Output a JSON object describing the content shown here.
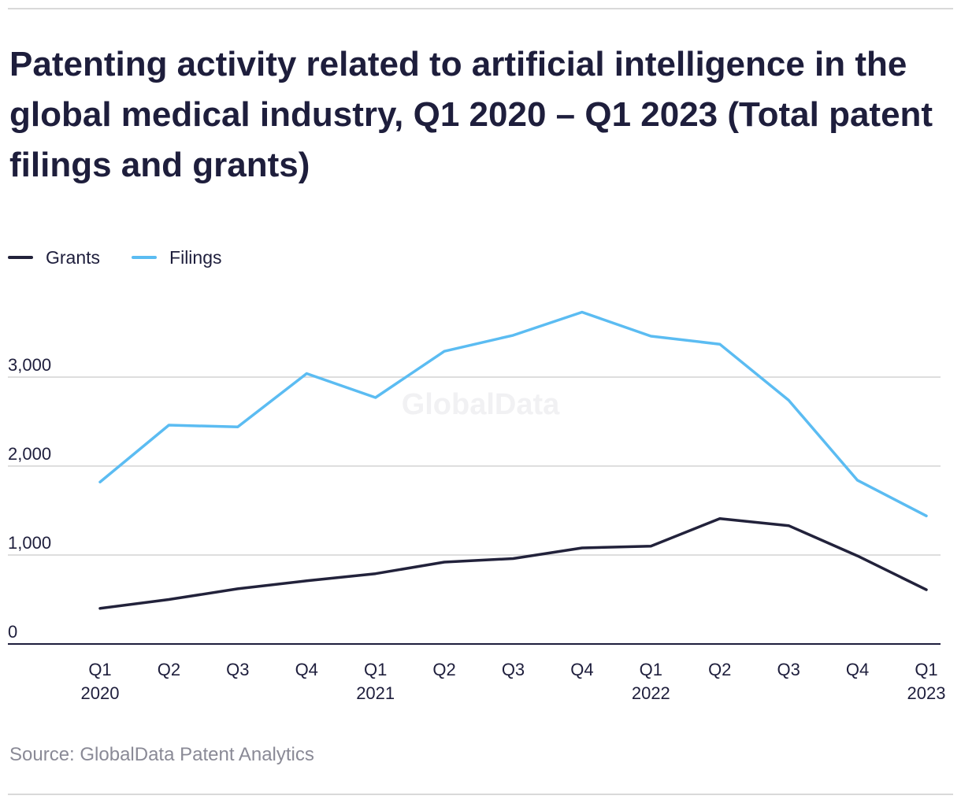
{
  "title": "Patenting activity related to artificial intelligence in the global medical industry, Q1 2020 – Q1 2023 (Total patent filings and grants)",
  "source": "Source: GlobalData Patent Analytics",
  "watermark": "GlobalData",
  "colors": {
    "grants": "#22223b",
    "filings": "#5bbcf2",
    "grid": "#d3d3d3",
    "axis": "#1e1e3c",
    "text": "#1e1e3c",
    "source": "#8a8a96"
  },
  "chart_data": {
    "type": "line",
    "categories": [
      "Q1 2020",
      "Q2 2020",
      "Q3 2020",
      "Q4 2020",
      "Q1 2021",
      "Q2 2021",
      "Q3 2021",
      "Q4 2021",
      "Q1 2022",
      "Q2 2022",
      "Q3 2022",
      "Q4 2022",
      "Q1 2023"
    ],
    "x_tick_labels": [
      {
        "quarter": "Q1",
        "year": "2020"
      },
      {
        "quarter": "Q2",
        "year": ""
      },
      {
        "quarter": "Q3",
        "year": ""
      },
      {
        "quarter": "Q4",
        "year": ""
      },
      {
        "quarter": "Q1",
        "year": "2021"
      },
      {
        "quarter": "Q2",
        "year": ""
      },
      {
        "quarter": "Q3",
        "year": ""
      },
      {
        "quarter": "Q4",
        "year": ""
      },
      {
        "quarter": "Q1",
        "year": "2022"
      },
      {
        "quarter": "Q2",
        "year": ""
      },
      {
        "quarter": "Q3",
        "year": ""
      },
      {
        "quarter": "Q4",
        "year": ""
      },
      {
        "quarter": "Q1",
        "year": "2023"
      }
    ],
    "series": [
      {
        "name": "Grants",
        "values": [
          400,
          500,
          620,
          710,
          790,
          920,
          960,
          1080,
          1100,
          1410,
          1330,
          990,
          610
        ]
      },
      {
        "name": "Filings",
        "values": [
          1820,
          2460,
          2440,
          3040,
          2770,
          3290,
          3470,
          3730,
          3460,
          3370,
          2740,
          1840,
          1440
        ]
      }
    ],
    "y_ticks": [
      0,
      1000,
      2000,
      3000
    ],
    "y_tick_labels": [
      "0",
      "1,000",
      "2,000",
      "3,000"
    ],
    "ylim": [
      0,
      4000
    ],
    "grid": true,
    "legend_position": "top-left",
    "xlabel": "",
    "ylabel": ""
  }
}
